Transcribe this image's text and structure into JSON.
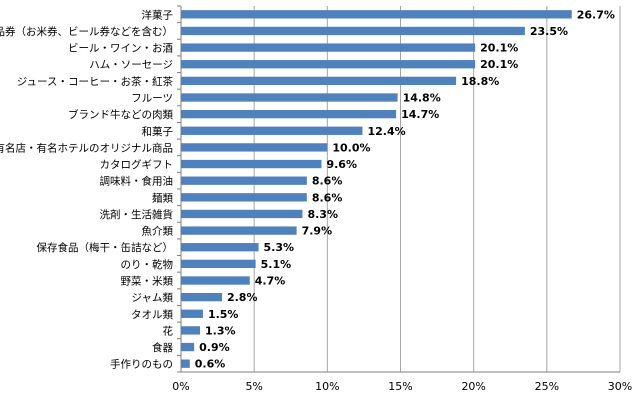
{
  "chart_data": {
    "type": "bar",
    "orientation": "horizontal",
    "categories": [
      "洋菓子",
      "商品券（お米券、ビール券などを含む）",
      "ビール・ワイン・お酒",
      "ハム・ソーセージ",
      "ジュース・コーヒー・お茶・紅茶",
      "フルーツ",
      "ブランド牛などの肉類",
      "和菓子",
      "有名店・有名ホテルのオリジナル商品",
      "カタログギフト",
      "調味料・食用油",
      "麺類",
      "洗剤・生活雑貨",
      "魚介類",
      "保存食品（梅干・缶詰など）",
      "のり・乾物",
      "野菜・米類",
      "ジャム類",
      "タオル類",
      "花",
      "食器",
      "手作りのもの"
    ],
    "values": [
      26.7,
      23.5,
      20.1,
      20.1,
      18.8,
      14.8,
      14.7,
      12.4,
      10.0,
      9.6,
      8.6,
      8.6,
      8.3,
      7.9,
      5.3,
      5.1,
      4.7,
      2.8,
      1.5,
      1.3,
      0.9,
      0.6
    ],
    "value_labels": [
      "26.7%",
      "23.5%",
      "20.1%",
      "20.1%",
      "18.8%",
      "14.8%",
      "14.7%",
      "12.4%",
      "10.0%",
      "9.6%",
      "8.6%",
      "8.6%",
      "8.3%",
      "7.9%",
      "5.3%",
      "5.1%",
      "4.7%",
      "2.8%",
      "1.5%",
      "1.3%",
      "0.9%",
      "0.6%"
    ],
    "xlim": [
      0,
      30
    ],
    "x_ticks": [
      0,
      5,
      10,
      15,
      20,
      25,
      30
    ],
    "x_tick_labels": [
      "0%",
      "5%",
      "10%",
      "15%",
      "20%",
      "25%",
      "30%"
    ],
    "grid": true,
    "legend": "none",
    "bar_color": "#4f81bd",
    "grid_color": "#a6a6a6"
  }
}
